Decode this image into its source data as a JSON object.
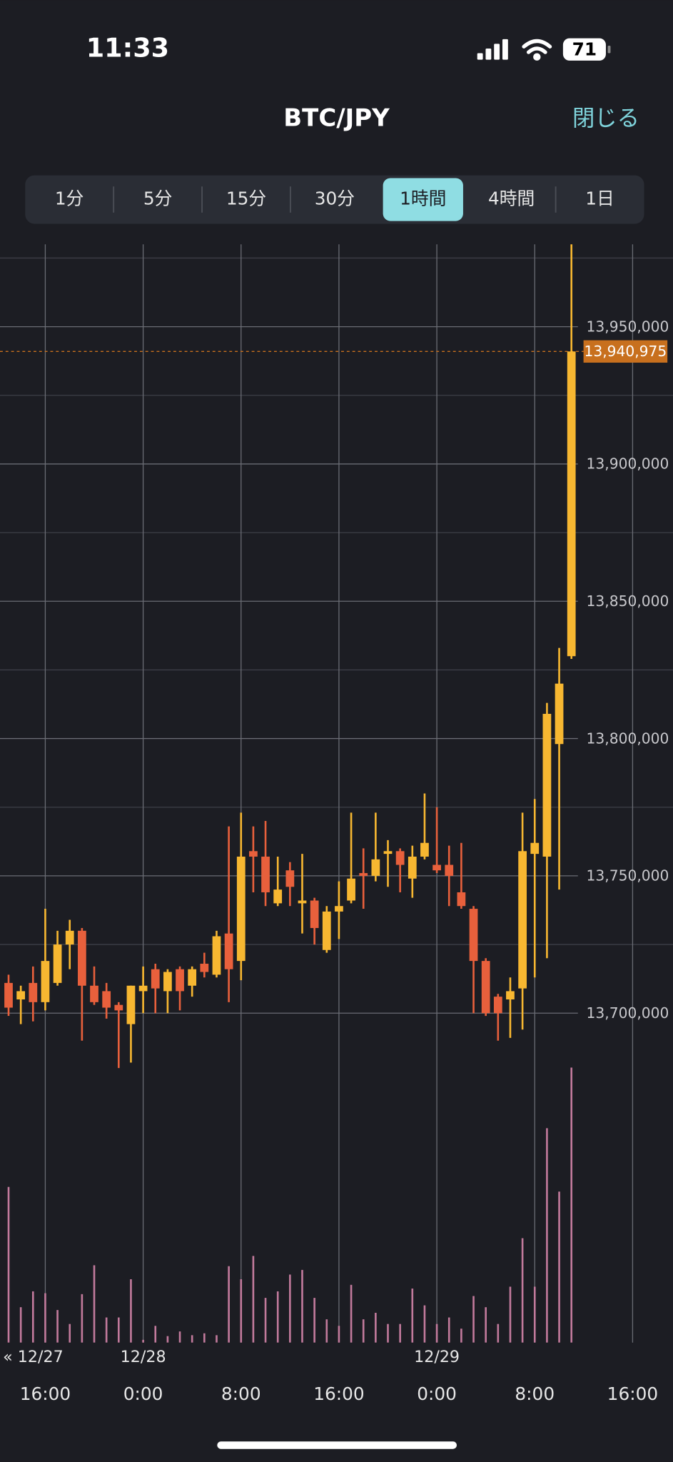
{
  "status_bar": {
    "time": "11:33",
    "battery": "71"
  },
  "header": {
    "title": "BTC/JPY",
    "close": "閉じる"
  },
  "timeframes": {
    "options": [
      "1分",
      "5分",
      "15分",
      "30分",
      "1時間",
      "4時間",
      "1日"
    ],
    "selected": 4
  },
  "chart_data": {
    "type": "candlestick",
    "x": [
      13,
      14,
      15,
      16,
      17,
      18,
      19,
      20,
      21,
      22,
      23,
      24,
      25,
      26,
      27,
      28,
      29,
      30,
      31,
      32,
      33,
      34,
      35,
      36,
      37,
      38,
      39,
      40,
      41,
      42,
      43,
      44,
      45,
      46,
      47,
      48,
      49,
      50,
      51,
      52,
      53,
      54,
      55,
      56,
      57,
      58,
      59
    ],
    "open": [
      13711000,
      13705000,
      13711000,
      13704000,
      13711000,
      13725000,
      13730000,
      13710000,
      13708000,
      13703000,
      13696000,
      13708000,
      13716000,
      13708000,
      13716000,
      13710000,
      13718000,
      13714000,
      13729000,
      13719000,
      13759000,
      13757000,
      13740000,
      13752000,
      13740000,
      13741000,
      13723000,
      13737000,
      13741000,
      13751000,
      13750000,
      13758000,
      13759000,
      13749000,
      13757000,
      13754000,
      13754000,
      13744000,
      13738000,
      13719000,
      13706000,
      13705000,
      13709000,
      13758000,
      13757000,
      13798000,
      13830000
    ],
    "high": [
      13714000,
      13710000,
      13717000,
      13738000,
      13730000,
      13734000,
      13731000,
      13717000,
      13711000,
      13704000,
      13710000,
      13717000,
      13718000,
      13716000,
      13717000,
      13717000,
      13722000,
      13730000,
      13768000,
      13773000,
      13768000,
      13770000,
      13757000,
      13755000,
      13758000,
      13742000,
      13739000,
      13748000,
      13773000,
      13760000,
      13773000,
      13763000,
      13760000,
      13761000,
      13780000,
      13775000,
      13761000,
      13762000,
      13739000,
      13720000,
      13707000,
      13713000,
      13773000,
      13778000,
      13813000,
      13833000,
      13985000
    ],
    "low": [
      13699000,
      13696000,
      13697000,
      13701000,
      13710000,
      13716000,
      13690000,
      13703000,
      13698000,
      13680000,
      13682000,
      13700000,
      13700000,
      13700000,
      13701000,
      13706000,
      13713000,
      13713000,
      13704000,
      13712000,
      13744000,
      13739000,
      13739000,
      13739000,
      13729000,
      13725000,
      13722000,
      13727000,
      13740000,
      13738000,
      13748000,
      13746000,
      13744000,
      13742000,
      13756000,
      13751000,
      13739000,
      13738000,
      13700000,
      13699000,
      13690000,
      13691000,
      13694000,
      13713000,
      13720000,
      13745000,
      13829000
    ],
    "close": [
      13702000,
      13708000,
      13704000,
      13719000,
      13725000,
      13730000,
      13710000,
      13704000,
      13702000,
      13701000,
      13710000,
      13710000,
      13709000,
      13715000,
      13708000,
      13716000,
      13715000,
      13728000,
      13716000,
      13757000,
      13757000,
      13744000,
      13745000,
      13746000,
      13741000,
      13731000,
      13737000,
      13739000,
      13749000,
      13750000,
      13756000,
      13759000,
      13754000,
      13757000,
      13762000,
      13752000,
      13750000,
      13739000,
      13719000,
      13700000,
      13700000,
      13708000,
      13759000,
      13762000,
      13809000,
      13820000,
      13940975
    ],
    "volume": [
      167,
      38,
      55,
      53,
      35,
      20,
      52,
      83,
      27,
      27,
      68,
      3,
      18,
      7,
      12,
      8,
      10,
      8,
      82,
      68,
      93,
      48,
      55,
      73,
      78,
      48,
      25,
      18,
      62,
      25,
      32,
      20,
      20,
      58,
      40,
      20,
      27,
      15,
      50,
      38,
      20,
      60,
      112,
      60,
      230,
      162,
      295
    ],
    "up_color": "#f7b731",
    "down_color": "#e8603c",
    "volume_color": "#c27a9c",
    "xlim": [
      12.3,
      67.3
    ],
    "xticks": [
      {
        "value": 16,
        "label": "16:00"
      },
      {
        "value": 24,
        "label": "0:00"
      },
      {
        "value": 32,
        "label": "8:00"
      },
      {
        "value": 40,
        "label": "16:00"
      },
      {
        "value": 48,
        "label": "0:00"
      },
      {
        "value": 56,
        "label": "8:00"
      },
      {
        "value": 64,
        "label": "16:00"
      }
    ],
    "date_labels": [
      {
        "value": 16,
        "label": "« 12/27"
      },
      {
        "value": 24,
        "label": "12/28"
      },
      {
        "value": 48,
        "label": "12/29"
      }
    ],
    "ylim": [
      13580000,
      13980000
    ],
    "yticks": [
      {
        "value": 13700000,
        "label": "13,700,000"
      },
      {
        "value": 13750000,
        "label": "13,750,000"
      },
      {
        "value": 13800000,
        "label": "13,800,000"
      },
      {
        "value": 13850000,
        "label": "13,850,000"
      },
      {
        "value": 13900000,
        "label": "13,900,000"
      },
      {
        "value": 13950000,
        "label": "13,950,000"
      }
    ],
    "y_minor_ticks": [
      13725000,
      13775000,
      13825000,
      13875000,
      13925000,
      13975000
    ],
    "volume_lim": [
      0,
      300
    ],
    "last_price": {
      "value": 13940975,
      "label": "13,940,975",
      "color": "#c8701e"
    },
    "grid": true
  }
}
